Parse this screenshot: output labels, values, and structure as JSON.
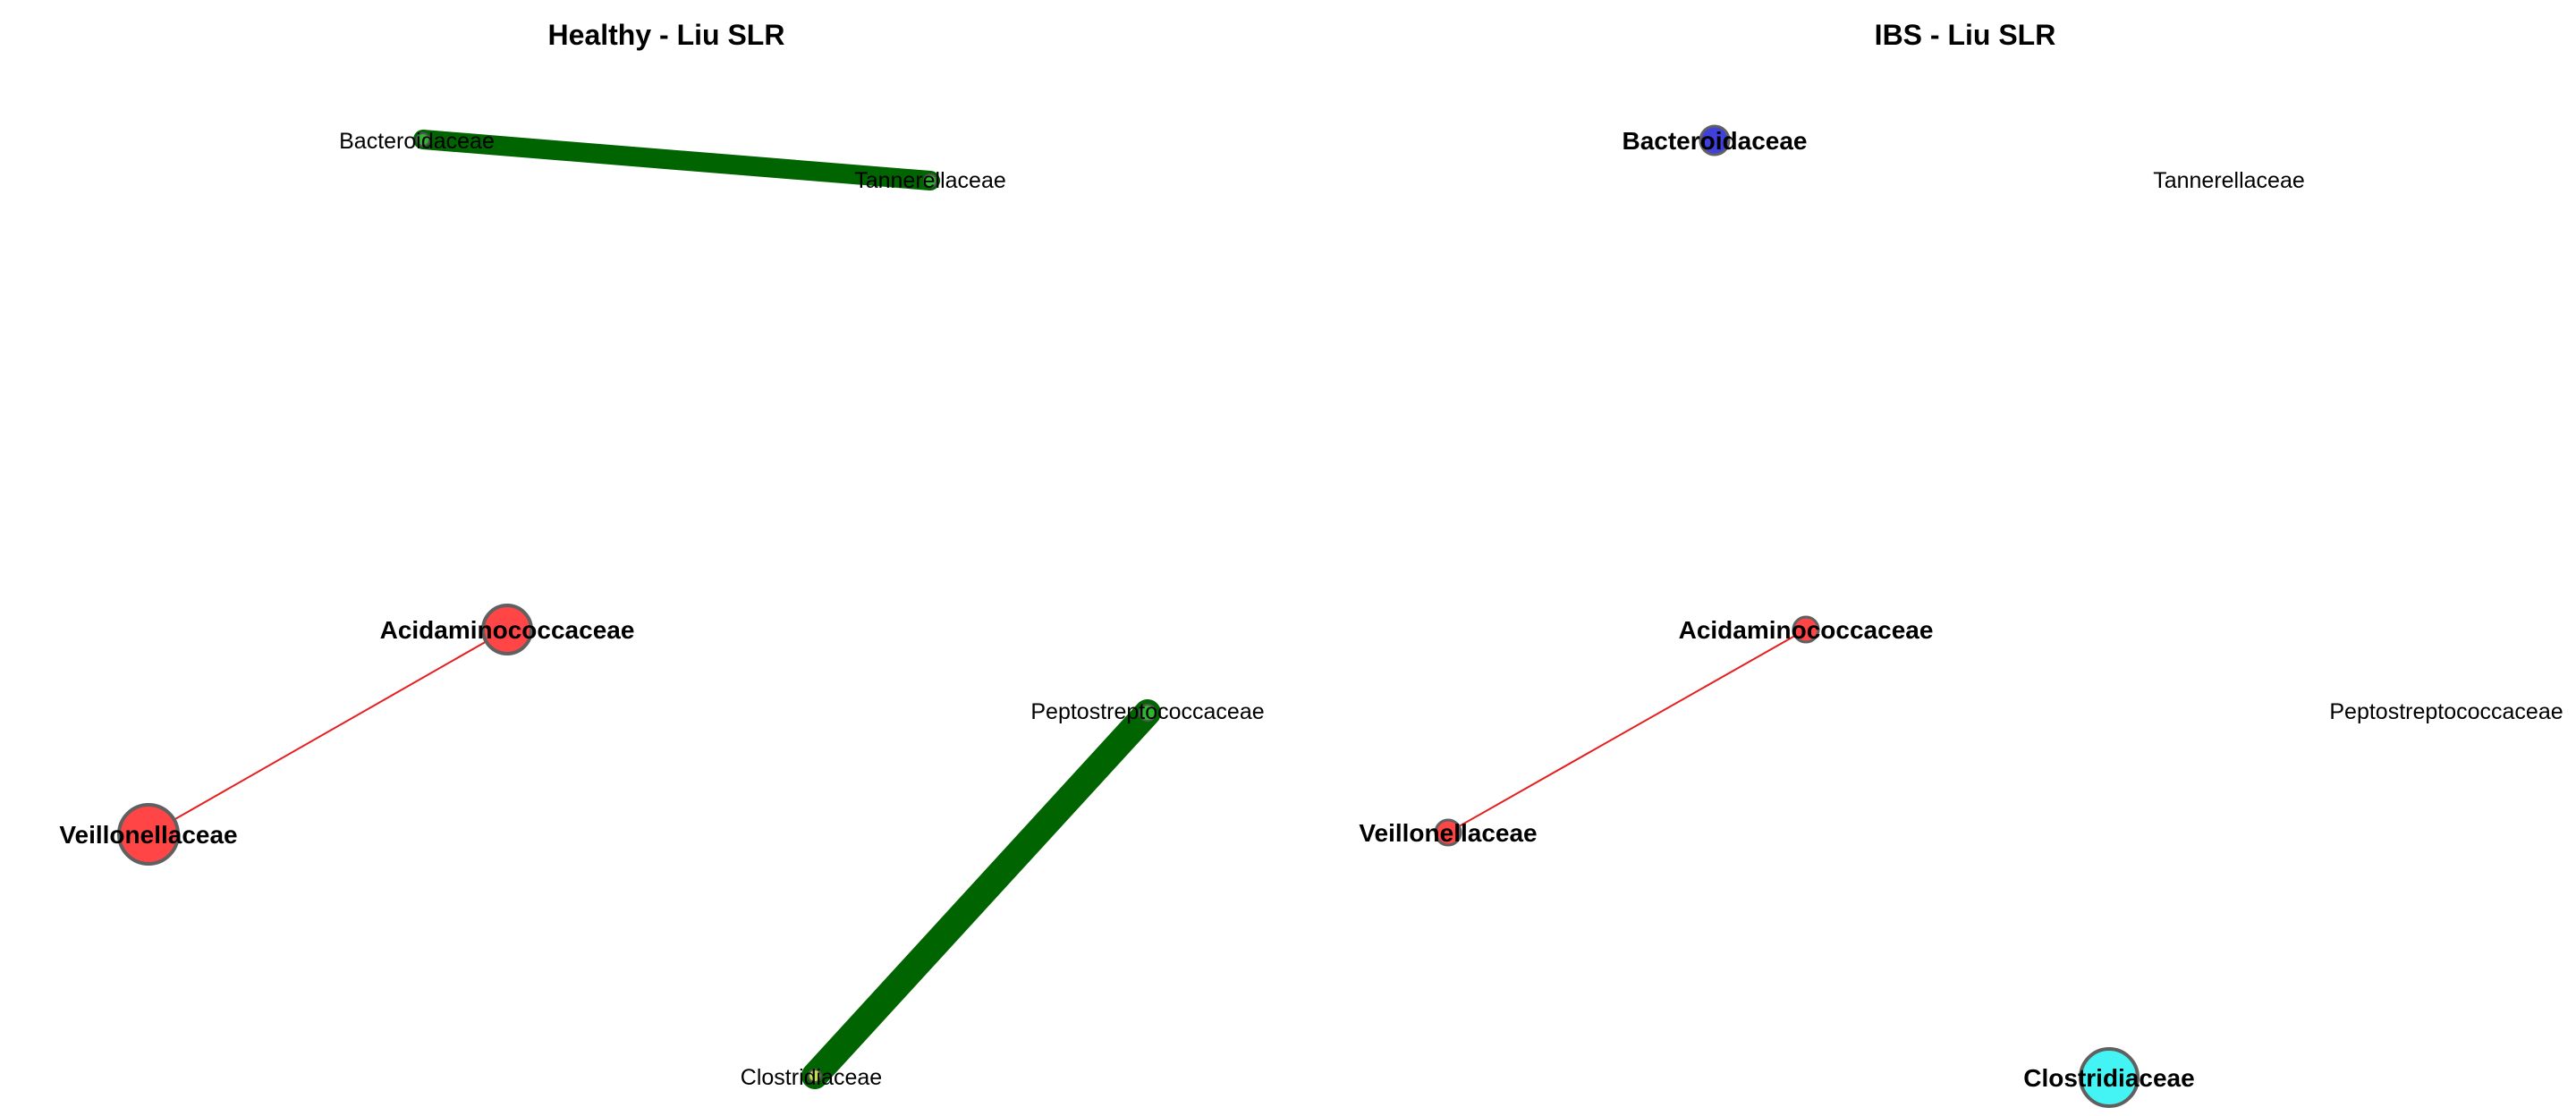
{
  "panels": [
    {
      "title": "Healthy - Liu SLR",
      "nodes": [
        {
          "label": "Bacteroidaceae",
          "fill": "#2fb52f",
          "size": "small",
          "bold": false
        },
        {
          "label": "Tannerellaceae",
          "fill": "#2fb52f",
          "size": "small",
          "bold": false
        },
        {
          "label": "Acidaminococcaceae",
          "fill": "#ff4545",
          "size": "medium",
          "bold": true
        },
        {
          "label": "Veillonellaceae",
          "fill": "#ff4545",
          "size": "large",
          "bold": true
        },
        {
          "label": "Peptostreptococcaceae",
          "fill": "#2fb52f",
          "size": "small",
          "bold": false
        },
        {
          "label": "Clostridiaceae",
          "fill": "#bfe04a",
          "size": "small",
          "bold": false
        }
      ],
      "edges": [
        {
          "from": "Bacteroidaceae",
          "to": "Tannerellaceae",
          "color": "#006400",
          "weight": "thick"
        },
        {
          "from": "Acidaminococcaceae",
          "to": "Veillonellaceae",
          "color": "#e61e1e",
          "weight": "thin"
        },
        {
          "from": "Peptostreptococcaceae",
          "to": "Clostridiaceae",
          "color": "#006400",
          "weight": "thick"
        }
      ]
    },
    {
      "title": "IBS - Liu SLR",
      "nodes": [
        {
          "label": "Bacteroidaceae",
          "fill": "#4040dd",
          "size": "small",
          "bold": true
        },
        {
          "label": "Tannerellaceae",
          "fill": "none",
          "size": "none",
          "bold": false
        },
        {
          "label": "Acidaminococcaceae",
          "fill": "#ff4545",
          "size": "small",
          "bold": true
        },
        {
          "label": "Veillonellaceae",
          "fill": "#ff4545",
          "size": "small",
          "bold": true
        },
        {
          "label": "Peptostreptococcaceae",
          "fill": "none",
          "size": "none",
          "bold": false
        },
        {
          "label": "Clostridiaceae",
          "fill": "#44f4f4",
          "size": "large",
          "bold": true
        }
      ],
      "edges": [
        {
          "from": "Acidaminococcaceae",
          "to": "Veillonellaceae",
          "color": "#e61e1e",
          "weight": "thin"
        }
      ]
    }
  ]
}
